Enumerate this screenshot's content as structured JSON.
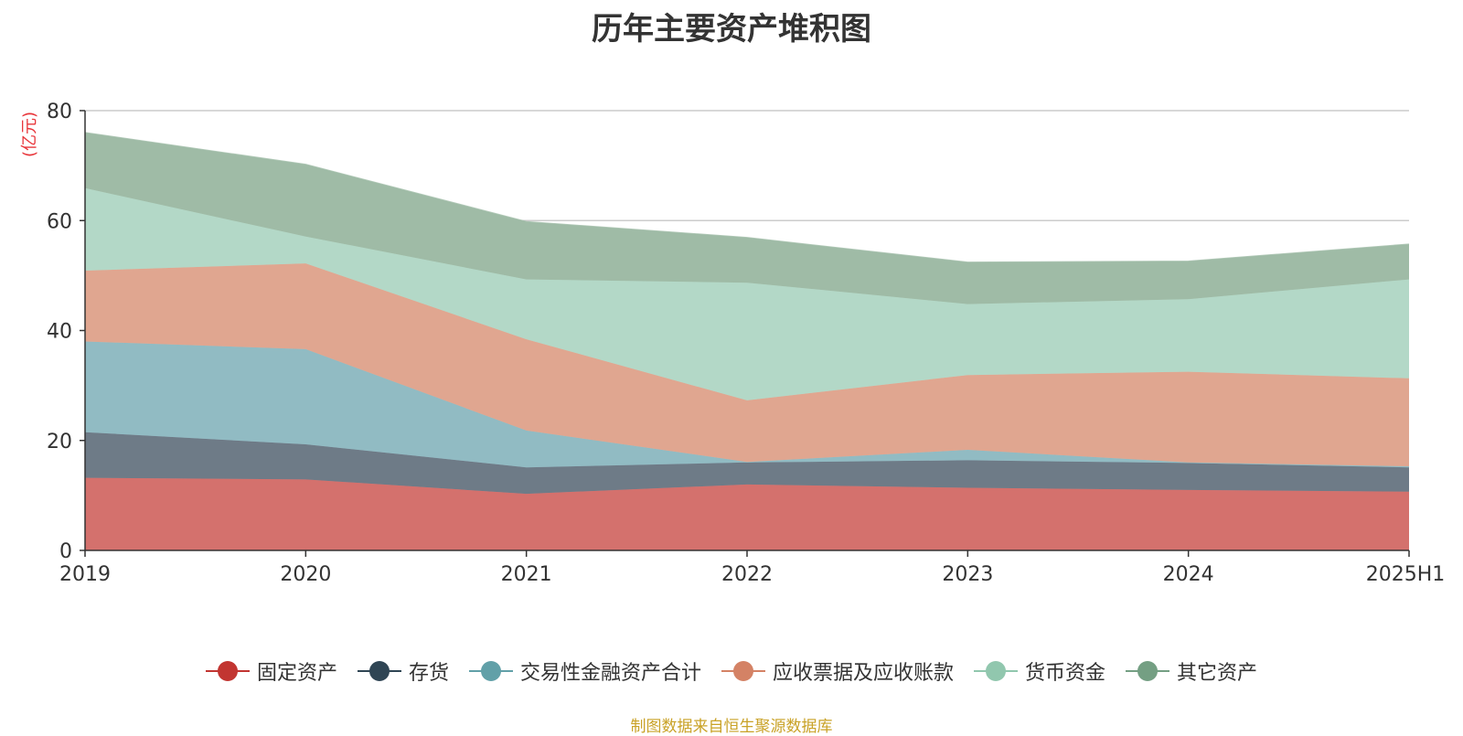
{
  "chart_data": {
    "type": "area",
    "stacked": true,
    "title": "历年主要资产堆积图",
    "unit_label": "(亿元)",
    "categories": [
      "2019",
      "2020",
      "2021",
      "2022",
      "2023",
      "2024",
      "2025H1"
    ],
    "ylim": [
      0,
      80
    ],
    "yticks": [
      0,
      20,
      40,
      60,
      80
    ],
    "grid": true,
    "legend_position": "bottom",
    "series": [
      {
        "name": "固定资产",
        "color": "#c23531",
        "fill": "#d4716d",
        "values": [
          13.2,
          12.9,
          10.3,
          12.0,
          11.4,
          11.0,
          10.7
        ]
      },
      {
        "name": "存货",
        "color": "#2f4554",
        "fill": "#6e7b87",
        "values": [
          8.3,
          6.4,
          4.8,
          4.0,
          5.0,
          4.9,
          4.4
        ]
      },
      {
        "name": "交易性金融资产合计",
        "color": "#61a0a8",
        "fill": "#91bbc3",
        "values": [
          16.5,
          17.3,
          6.7,
          0.1,
          1.9,
          0.1,
          0.2
        ]
      },
      {
        "name": "应收票据及应收账款",
        "color": "#d48265",
        "fill": "#e0a690",
        "values": [
          12.9,
          15.6,
          16.6,
          11.2,
          13.6,
          16.5,
          16.0
        ]
      },
      {
        "name": "货币资金",
        "color": "#91c7ae",
        "fill": "#b3d8c7",
        "values": [
          15.0,
          4.9,
          10.9,
          21.4,
          12.9,
          13.2,
          18.0
        ]
      },
      {
        "name": "其它资产",
        "color": "#749f83",
        "fill": "#9fbba6",
        "values": [
          10.1,
          13.1,
          10.5,
          8.2,
          7.6,
          6.9,
          6.4
        ]
      }
    ]
  },
  "source_note": "制图数据来自恒生聚源数据库"
}
